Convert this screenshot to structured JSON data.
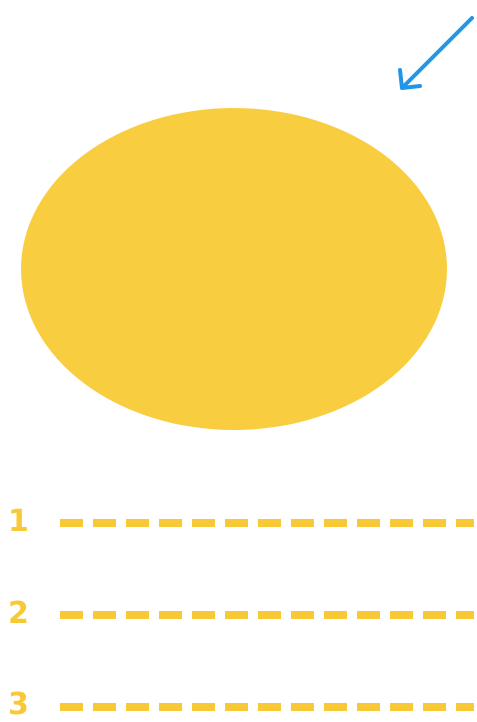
{
  "colors": {
    "background": "#ffffff",
    "shape_fill": "#F9CD40",
    "arrow": "#2196E9",
    "numbers": "#F8C936"
  },
  "icons": {
    "arrow": "diagonal-arrow-icon",
    "shape": "ellipse"
  },
  "list": {
    "items": [
      {
        "number": "1"
      },
      {
        "number": "2"
      },
      {
        "number": "3"
      }
    ]
  }
}
